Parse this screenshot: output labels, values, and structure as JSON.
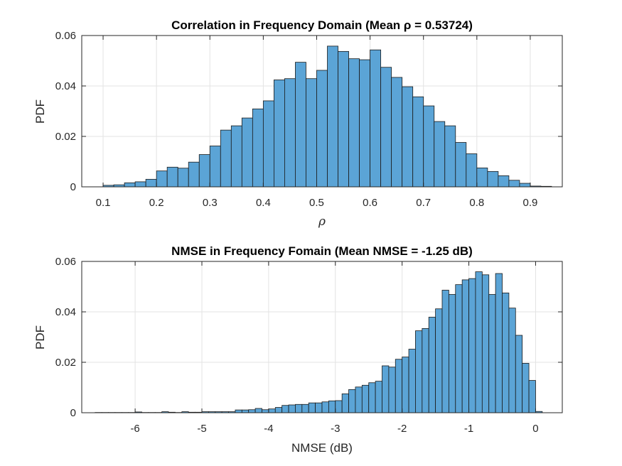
{
  "chart_data": [
    {
      "type": "bar",
      "subtype": "histogram",
      "title": "Correlation in Frequency Domain (Mean ρ = 0.53724)",
      "xlabel": "ρ",
      "ylabel": "PDF",
      "xlim": [
        0.06,
        0.96
      ],
      "ylim": [
        0,
        0.06
      ],
      "xticks": [
        0.1,
        0.2,
        0.3,
        0.4,
        0.5,
        0.6,
        0.7,
        0.8,
        0.9
      ],
      "xtick_labels": [
        "0.1",
        "0.2",
        "0.3",
        "0.4",
        "0.5",
        "0.6",
        "0.7",
        "0.8",
        "0.9"
      ],
      "yticks": [
        0,
        0.02,
        0.04,
        0.06
      ],
      "ytick_labels": [
        "0",
        "0.02",
        "0.04",
        "0.06"
      ],
      "grid": true,
      "bar_color": "#5BA4D6",
      "edge_color": "#1a1a1a",
      "bin_edges": [
        0.1,
        0.12,
        0.14,
        0.16,
        0.18,
        0.2,
        0.22,
        0.24,
        0.26,
        0.28,
        0.3,
        0.32,
        0.34,
        0.36,
        0.38,
        0.4,
        0.42,
        0.44,
        0.46,
        0.48,
        0.5,
        0.52,
        0.54,
        0.56,
        0.58,
        0.6,
        0.62,
        0.64,
        0.66,
        0.68,
        0.7,
        0.72,
        0.74,
        0.76,
        0.78,
        0.8,
        0.82,
        0.84,
        0.86,
        0.88,
        0.9,
        0.92,
        0.94
      ],
      "values": [
        0.0006,
        0.0008,
        0.0016,
        0.002,
        0.003,
        0.0063,
        0.0078,
        0.0074,
        0.0098,
        0.0128,
        0.0162,
        0.0225,
        0.0242,
        0.0273,
        0.0309,
        0.0341,
        0.0424,
        0.0429,
        0.0494,
        0.0429,
        0.0462,
        0.0558,
        0.0537,
        0.0508,
        0.0504,
        0.0543,
        0.0474,
        0.0434,
        0.0397,
        0.0357,
        0.0321,
        0.0259,
        0.0242,
        0.0176,
        0.0131,
        0.0075,
        0.0061,
        0.0044,
        0.0026,
        0.0014,
        0.0003,
        0.0002
      ]
    },
    {
      "type": "bar",
      "subtype": "histogram",
      "title": "NMSE in Frequency Fomain (Mean NMSE = -1.25 dB)",
      "xlabel": "NMSE (dB)",
      "ylabel": "PDF",
      "xlim": [
        -6.8,
        0.4
      ],
      "ylim": [
        0,
        0.06
      ],
      "xticks": [
        -6,
        -5,
        -4,
        -3,
        -2,
        -1,
        0
      ],
      "xtick_labels": [
        "-6",
        "-5",
        "-4",
        "-3",
        "-2",
        "-1",
        "0"
      ],
      "yticks": [
        0,
        0.02,
        0.04,
        0.06
      ],
      "ytick_labels": [
        "0",
        "0.02",
        "0.04",
        "0.06"
      ],
      "grid": true,
      "bar_color": "#5BA4D6",
      "edge_color": "#1a1a1a",
      "bin_edges": [
        -6.6,
        -6.5,
        -6.4,
        -6.3,
        -6.2,
        -6.1,
        -6.0,
        -5.9,
        -5.8,
        -5.7,
        -5.6,
        -5.5,
        -5.4,
        -5.3,
        -5.2,
        -5.1,
        -5.0,
        -4.9,
        -4.8,
        -4.7,
        -4.6,
        -4.5,
        -4.4,
        -4.3,
        -4.2,
        -4.1,
        -4.0,
        -3.9,
        -3.8,
        -3.7,
        -3.6,
        -3.5,
        -3.4,
        -3.3,
        -3.2,
        -3.1,
        -3.0,
        -2.9,
        -2.8,
        -2.7,
        -2.6,
        -2.5,
        -2.4,
        -2.3,
        -2.2,
        -2.1,
        -2.0,
        -1.9,
        -1.8,
        -1.7,
        -1.6,
        -1.5,
        -1.4,
        -1.3,
        -1.2,
        -1.1,
        -1.0,
        -0.9,
        -0.8,
        -0.7,
        -0.6,
        -0.5,
        -0.4,
        -0.3,
        -0.2,
        -0.1,
        0.0,
        0.1
      ],
      "values": [
        0.0001,
        0.0001,
        0.0001,
        0.0001,
        0.0001,
        0.0001,
        0.0003,
        0.0001,
        0.0001,
        0.0001,
        0.0004,
        0.0002,
        0.0001,
        0.0004,
        0.0002,
        0.0002,
        0.0004,
        0.0004,
        0.0004,
        0.0004,
        0.0004,
        0.0011,
        0.0011,
        0.0012,
        0.0017,
        0.0012,
        0.0015,
        0.0021,
        0.0029,
        0.0031,
        0.0033,
        0.0033,
        0.0039,
        0.0039,
        0.0043,
        0.0047,
        0.0048,
        0.0075,
        0.0092,
        0.0102,
        0.0109,
        0.0119,
        0.0125,
        0.0186,
        0.0181,
        0.0212,
        0.0221,
        0.0252,
        0.0325,
        0.0334,
        0.0379,
        0.0412,
        0.0486,
        0.0469,
        0.0508,
        0.0527,
        0.0532,
        0.0559,
        0.0547,
        0.0469,
        0.0552,
        0.0475,
        0.0415,
        0.0307,
        0.0196,
        0.0128,
        0.0005
      ]
    }
  ]
}
